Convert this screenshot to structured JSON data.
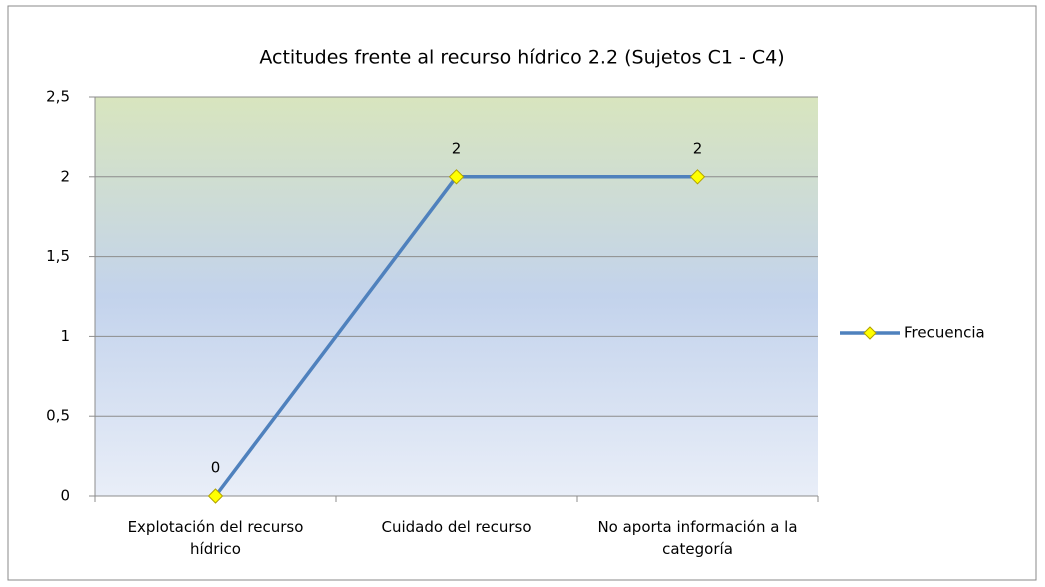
{
  "chart_data": {
    "type": "line",
    "title": "Actitudes frente al recurso hídrico 2.2 (Sujetos C1 - C4)",
    "categories": [
      "Explotación del recurso hídrico",
      "Cuidado del recurso",
      "No aporta información a la categoría"
    ],
    "series": [
      {
        "name": "Frecuencia",
        "color": "#4f81bd",
        "values": [
          0,
          2,
          2
        ]
      }
    ],
    "ylim": [
      0,
      2.5
    ],
    "yticks": [
      0,
      {
        "value": 0.5,
        "label": "0,5"
      },
      1,
      {
        "value": 1.5,
        "label": "1,5"
      },
      2,
      {
        "value": 2.5,
        "label": "2,5"
      }
    ],
    "grid": true,
    "legend": "right"
  }
}
